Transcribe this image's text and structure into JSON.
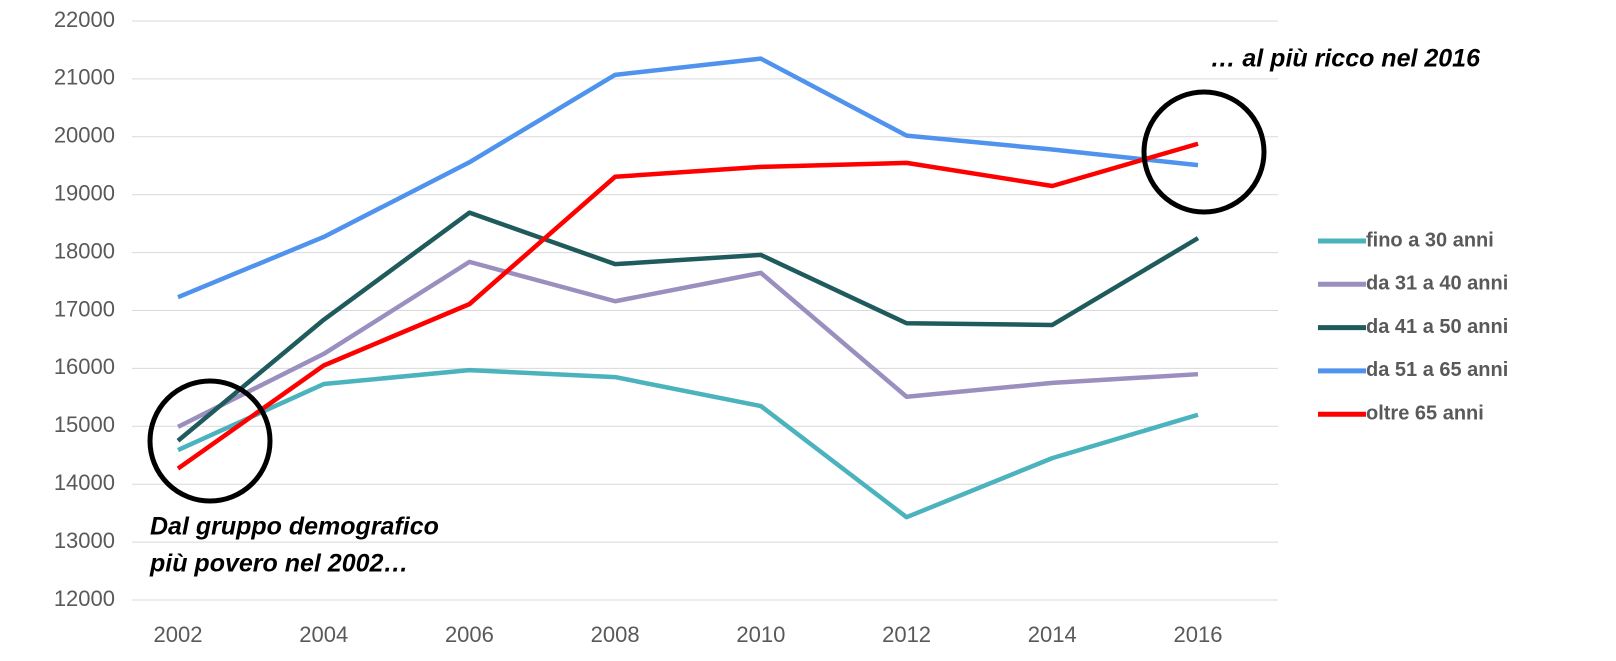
{
  "chart_data": {
    "type": "line",
    "categories": [
      "2002",
      "2004",
      "2006",
      "2008",
      "2010",
      "2012",
      "2014",
      "2016"
    ],
    "series": [
      {
        "name": "fino a 30 anni",
        "color": "#4bb3bd",
        "values": [
          14590,
          15730,
          15970,
          15850,
          15350,
          13430,
          14450,
          15200
        ]
      },
      {
        "name": "da 31 a 40 anni",
        "color": "#9a8fbf",
        "values": [
          14990,
          16250,
          17840,
          17160,
          17650,
          15510,
          15750,
          15900
        ]
      },
      {
        "name": "da 41 a 50 anni",
        "color": "#1f5a5c",
        "values": [
          14750,
          16840,
          18690,
          17800,
          17960,
          16780,
          16750,
          18250
        ]
      },
      {
        "name": "da 51 a 65 anni",
        "color": "#4f93ef",
        "values": [
          17230,
          18270,
          19560,
          21070,
          21350,
          20020,
          19780,
          19510
        ]
      },
      {
        "name": "oltre 65 anni",
        "color": "#ff0000",
        "values": [
          14270,
          16050,
          17110,
          19310,
          19480,
          19550,
          19150,
          19880
        ]
      }
    ],
    "ylim": [
      12000,
      22000
    ],
    "yticks": [
      12000,
      13000,
      14000,
      15000,
      16000,
      17000,
      18000,
      19000,
      20000,
      21000,
      22000
    ],
    "grid": true,
    "legend": "right",
    "annotations": {
      "top": "… al più ricco nel 2016",
      "bottom": [
        "Dal gruppo demografico",
        "più povero nel 2002…"
      ]
    }
  }
}
